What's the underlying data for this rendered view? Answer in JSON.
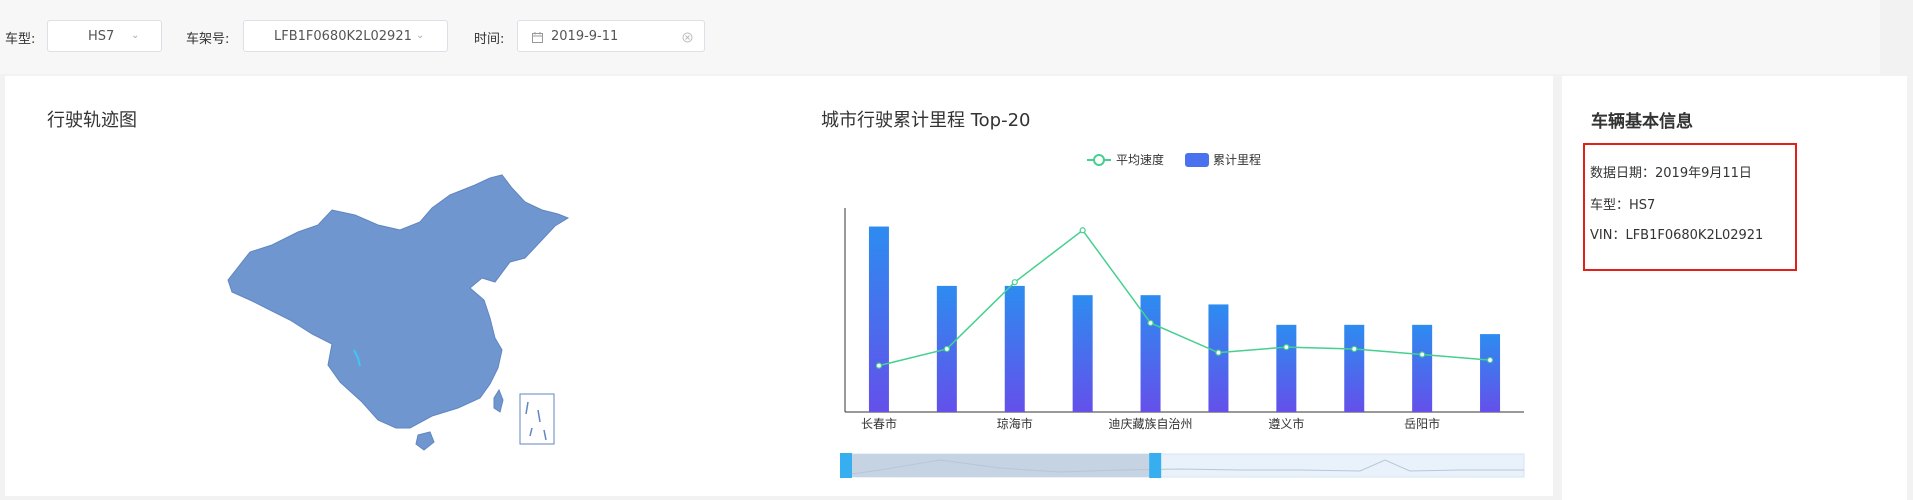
{
  "filters": {
    "car_type": {
      "label": "车型:",
      "value": "HS7"
    },
    "vin": {
      "label": "车架号:",
      "value": "LFB1F0680K2L02921"
    },
    "date": {
      "label": "时间:",
      "value": "2019-9-11"
    }
  },
  "map_panel": {
    "title": "行驶轨迹图"
  },
  "chart_panel": {
    "title": "城市行驶累计里程 Top-20"
  },
  "info_panel": {
    "title": "车辆基本信息",
    "lines": [
      "数据日期：2019年9月11日",
      "车型：HS7",
      "VIN：LFB1F0680K2L02921"
    ]
  },
  "colors": {
    "bar_top": "#2d8cf0",
    "bar_bottom": "#6450ea",
    "line": "#45d08f",
    "highlight_box": "#e0211a",
    "map_fill": "#7096cf"
  },
  "chart_data": {
    "type": "bar",
    "legend": [
      "平均速度",
      "累计里程"
    ],
    "legend_position": "top-center",
    "categories": [
      "长春市",
      "",
      "琼海市",
      "",
      "迪庆藏族自治州",
      "",
      "遵义市",
      "",
      "岳阳市",
      ""
    ],
    "x_tick_labels": [
      "长春市",
      "琼海市",
      "迪庆藏族自治州",
      "遵义市",
      "岳阳市"
    ],
    "series": [
      {
        "name": "累计里程",
        "type": "bar",
        "values": [
          100,
          68,
          68,
          63,
          63,
          58,
          47,
          47,
          47,
          42
        ]
      },
      {
        "name": "平均速度",
        "type": "line",
        "values": [
          25,
          34,
          70,
          98,
          48,
          32,
          35,
          34,
          31,
          28
        ]
      }
    ],
    "ylim": [
      0,
      110
    ],
    "grid": false,
    "zoom_window": [
      0,
      0.46
    ]
  }
}
